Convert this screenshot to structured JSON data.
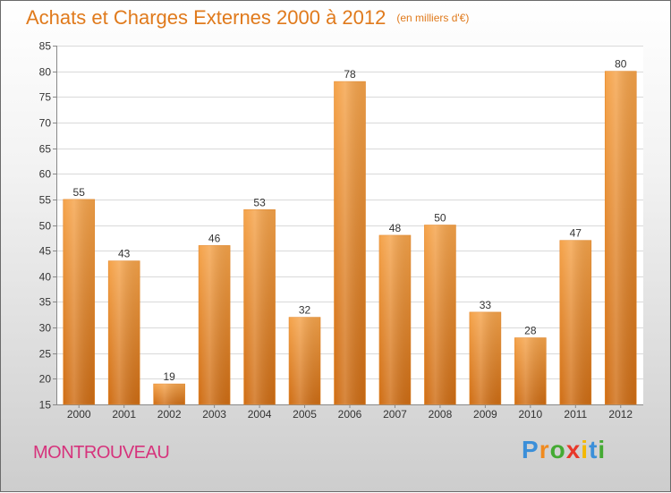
{
  "header": {
    "title": "Achats et Charges Externes 2000 à 2012",
    "unit": "(en milliers d'€)"
  },
  "footer": {
    "commune": "MONTROUVEAU",
    "brand_letters": [
      "P",
      "r",
      "o",
      "x",
      "i",
      "t",
      "i"
    ],
    "brand_colors": [
      "#3b8fd9",
      "#f08a1e",
      "#44aa33",
      "#e8382a",
      "#f5b800",
      "#3b8fd9",
      "#44aa33"
    ]
  },
  "chart_data": {
    "type": "bar",
    "title": "Achats et Charges Externes 2000 à 2012",
    "subtitle": "(en milliers d'€)",
    "xlabel": "",
    "ylabel": "",
    "categories": [
      "2000",
      "2001",
      "2002",
      "2003",
      "2004",
      "2005",
      "2006",
      "2007",
      "2008",
      "2009",
      "2010",
      "2011",
      "2012"
    ],
    "values": [
      55,
      43,
      19,
      46,
      53,
      32,
      78,
      48,
      50,
      33,
      28,
      47,
      80
    ],
    "ylim": [
      15,
      85
    ],
    "yticks": [
      15,
      20,
      25,
      30,
      35,
      40,
      45,
      50,
      55,
      60,
      65,
      70,
      75,
      80,
      85
    ],
    "grid": true,
    "bar_color_top": "#f5a34a",
    "bar_color_bottom": "#cf6d14"
  }
}
